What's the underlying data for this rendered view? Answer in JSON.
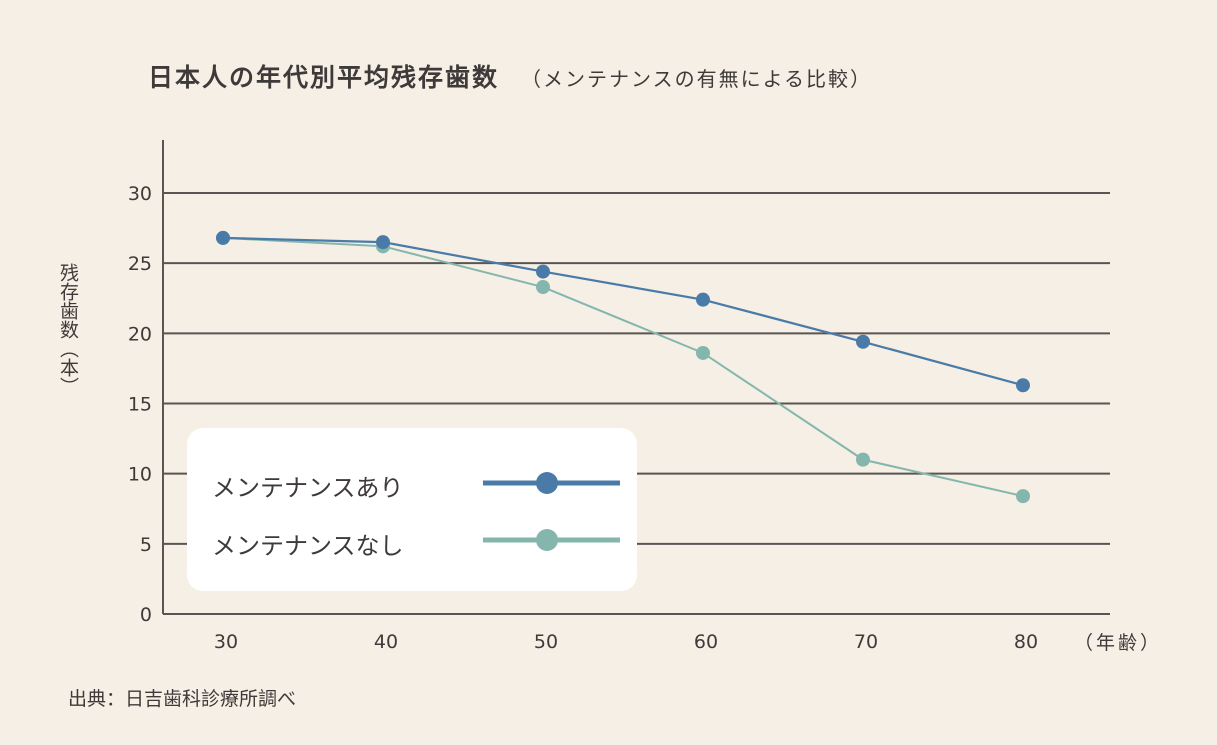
{
  "chart_data": {
    "type": "line",
    "title": "日本人の年代別平均残存歯数",
    "subtitle": "（メンテナンスの有無による比較）",
    "ylabel": "残存歯数（本）",
    "xlabel": "（年齢）",
    "x": [
      30,
      40,
      50,
      60,
      70,
      80
    ],
    "ylim": [
      0,
      30
    ],
    "yticks": [
      0,
      5,
      10,
      15,
      20,
      25,
      30
    ],
    "grid": true,
    "legend_placement": "bottom-left",
    "series": [
      {
        "name": "メンテナンスあり",
        "color": "#4a7ba8",
        "values": [
          26.8,
          26.5,
          24.4,
          22.4,
          19.4,
          16.3
        ]
      },
      {
        "name": "メンテナンスなし",
        "color": "#84b6ad",
        "values": [
          26.8,
          26.2,
          23.3,
          18.6,
          11.0,
          8.4
        ]
      }
    ],
    "source": "出典：日吉歯科診療所調べ"
  }
}
